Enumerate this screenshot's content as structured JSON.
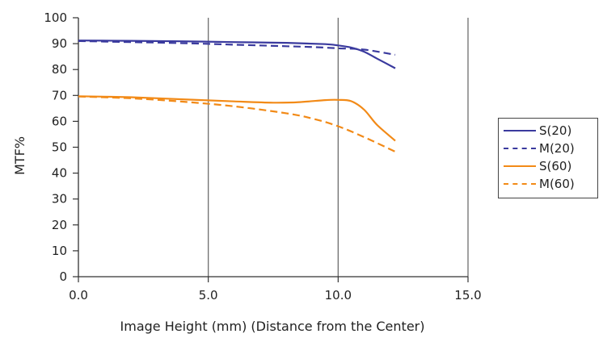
{
  "chart_data": {
    "type": "line",
    "title": "",
    "xlabel": "Image Height (mm) (Distance from the Center)",
    "ylabel": "MTF%",
    "xlim": [
      0,
      15
    ],
    "ylim": [
      0,
      100
    ],
    "x_ticks": [
      "0.0",
      "5.0",
      "10.0",
      "15.0"
    ],
    "x_tick_values": [
      0,
      5,
      10,
      15
    ],
    "y_ticks": [
      "0",
      "10",
      "20",
      "30",
      "40",
      "50",
      "60",
      "70",
      "80",
      "90",
      "100"
    ],
    "y_tick_values": [
      0,
      10,
      20,
      30,
      40,
      50,
      60,
      70,
      80,
      90,
      100
    ],
    "grid": "vertical lines at x ticks",
    "legend_position": "right",
    "series": [
      {
        "name": "S(20)",
        "color": "#3a3a9e",
        "dash": "solid",
        "x": [
          0,
          2,
          4,
          6,
          8,
          9.5,
          10,
          10.5,
          11,
          11.5,
          12.2
        ],
        "y": [
          91.2,
          91.1,
          90.9,
          90.6,
          90.3,
          89.8,
          89.3,
          88.5,
          86.9,
          84.2,
          80.5
        ]
      },
      {
        "name": "M(20)",
        "color": "#3a3a9e",
        "dash": "dashed",
        "x": [
          0,
          2,
          4,
          6,
          8,
          9,
          10,
          11,
          12.2
        ],
        "y": [
          91.0,
          90.6,
          90.2,
          89.6,
          89.0,
          88.7,
          88.2,
          87.7,
          85.7
        ]
      },
      {
        "name": "S(60)",
        "color": "#f28a17",
        "dash": "solid",
        "x": [
          0,
          2,
          4,
          6,
          7.5,
          8.5,
          9.5,
          10,
          10.5,
          11,
          11.5,
          12.2
        ],
        "y": [
          69.7,
          69.3,
          68.5,
          67.7,
          67.2,
          67.4,
          68.2,
          68.3,
          67.8,
          64.5,
          58.6,
          52.5
        ]
      },
      {
        "name": "M(60)",
        "color": "#f28a17",
        "dash": "dashed",
        "x": [
          0,
          2,
          4,
          6,
          8,
          9,
          10,
          11,
          12.2
        ],
        "y": [
          69.6,
          68.9,
          67.6,
          65.8,
          63.1,
          61.1,
          58.1,
          53.9,
          48.3
        ]
      }
    ]
  }
}
